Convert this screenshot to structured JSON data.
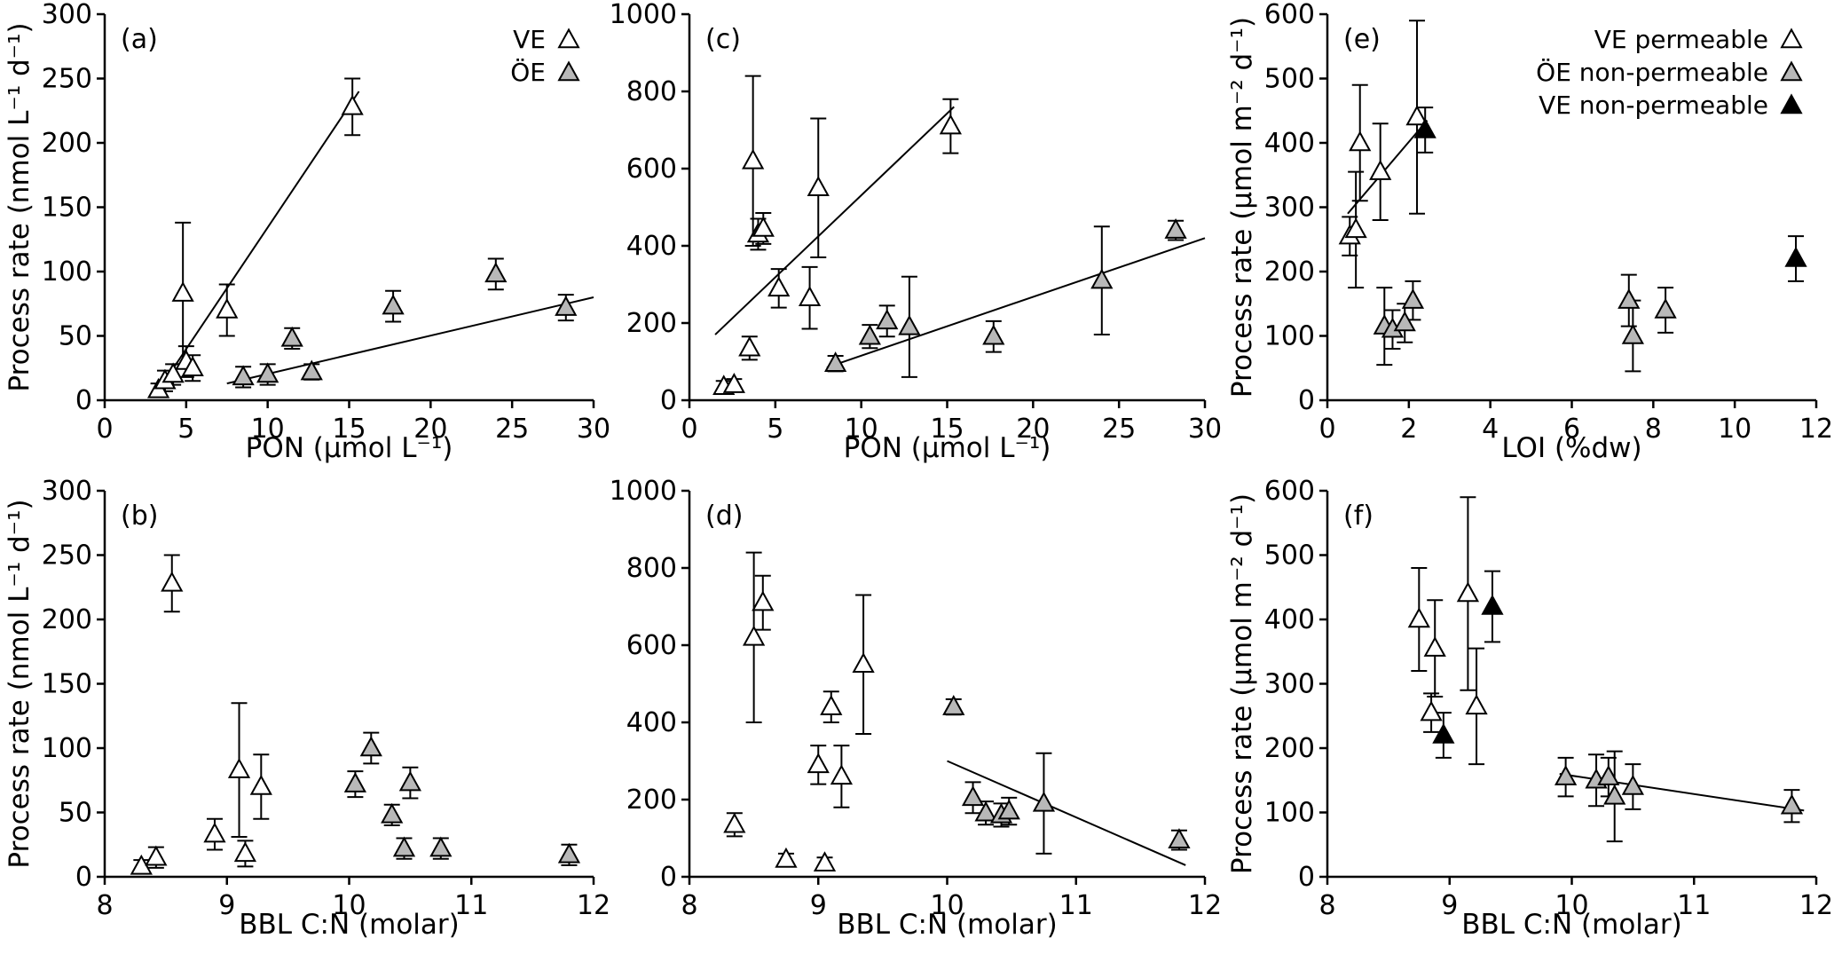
{
  "figure": {
    "background": "#ffffff",
    "axis_color": "#000000",
    "marker_styles": {
      "open": {
        "fill": "#ffffff",
        "stroke": "#000000"
      },
      "gray": {
        "fill": "#b8b8b8",
        "stroke": "#000000"
      },
      "black": {
        "fill": "#000000",
        "stroke": "#000000"
      }
    }
  },
  "chart_data": [
    {
      "id": "a",
      "type": "scatter",
      "panel_label": "(a)",
      "xlabel": "PON (µmol L⁻¹)",
      "ylabel": "Process rate (nmol L⁻¹ d⁻¹)",
      "xlim": [
        0,
        30
      ],
      "xticks": [
        0,
        5,
        10,
        15,
        20,
        25,
        30
      ],
      "ylim": [
        0,
        300
      ],
      "yticks": [
        0,
        50,
        100,
        150,
        200,
        250,
        300
      ],
      "legend": [
        {
          "label": "VE",
          "style": "open"
        },
        {
          "label": "ÖE",
          "style": "gray"
        }
      ],
      "series": [
        {
          "name": "VE",
          "style": "open",
          "points": [
            [
              3.3,
              8,
              5
            ],
            [
              3.7,
              15,
              8
            ],
            [
              4.2,
              20,
              8
            ],
            [
              4.8,
              83,
              55
            ],
            [
              5.0,
              30,
              12
            ],
            [
              5.4,
              25,
              10
            ],
            [
              7.5,
              70,
              20
            ],
            [
              15.2,
              228,
              22
            ]
          ]
        },
        {
          "name": "ÖE",
          "style": "gray",
          "points": [
            [
              8.5,
              18,
              8
            ],
            [
              10.0,
              20,
              8
            ],
            [
              11.5,
              48,
              8
            ],
            [
              12.7,
              22,
              6
            ],
            [
              17.7,
              73,
              12
            ],
            [
              24.0,
              98,
              12
            ],
            [
              28.3,
              72,
              10
            ]
          ]
        }
      ],
      "fit_lines": [
        [
          3.0,
          2,
          15.6,
          240
        ],
        [
          7.5,
          13,
          30,
          80
        ]
      ]
    },
    {
      "id": "c",
      "type": "scatter",
      "panel_label": "(c)",
      "xlabel": "PON (µmol L⁻¹)",
      "ylabel": "",
      "xlim": [
        0,
        30
      ],
      "xticks": [
        0,
        5,
        10,
        15,
        20,
        25,
        30
      ],
      "ylim": [
        0,
        1000
      ],
      "yticks": [
        0,
        200,
        400,
        600,
        800,
        1000
      ],
      "legend": [],
      "series": [
        {
          "name": "VE",
          "style": "open",
          "points": [
            [
              2.0,
              35,
              15
            ],
            [
              2.6,
              40,
              15
            ],
            [
              3.5,
              135,
              30
            ],
            [
              3.7,
              620,
              220
            ],
            [
              4.0,
              430,
              40
            ],
            [
              4.3,
              445,
              40
            ],
            [
              5.2,
              290,
              50
            ],
            [
              7.0,
              265,
              80
            ],
            [
              7.5,
              550,
              180
            ],
            [
              15.2,
              710,
              70
            ]
          ]
        },
        {
          "name": "ÖE",
          "style": "gray",
          "points": [
            [
              8.5,
              95,
              20
            ],
            [
              10.5,
              165,
              30
            ],
            [
              11.5,
              205,
              40
            ],
            [
              12.8,
              190,
              130
            ],
            [
              17.7,
              165,
              40
            ],
            [
              24.0,
              310,
              140
            ],
            [
              28.3,
              440,
              25
            ]
          ]
        }
      ],
      "fit_lines": [
        [
          1.5,
          170,
          15.4,
          760
        ],
        [
          8.0,
          85,
          30,
          420
        ]
      ]
    },
    {
      "id": "e",
      "type": "scatter",
      "panel_label": "(e)",
      "xlabel": "LOI (%dw)",
      "ylabel": "Process rate (µmol m⁻² d⁻¹)",
      "xlim": [
        0,
        12
      ],
      "xticks": [
        0,
        2,
        4,
        6,
        8,
        10,
        12
      ],
      "ylim": [
        0,
        600
      ],
      "yticks": [
        0,
        100,
        200,
        300,
        400,
        500,
        600
      ],
      "legend": [
        {
          "label": "VE permeable",
          "style": "open"
        },
        {
          "label": "ÖE non-permeable",
          "style": "gray"
        },
        {
          "label": "VE non-permeable",
          "style": "black"
        }
      ],
      "series": [
        {
          "name": "VE permeable",
          "style": "open",
          "points": [
            [
              0.55,
              255,
              30
            ],
            [
              0.7,
              265,
              90
            ],
            [
              0.8,
              400,
              90
            ],
            [
              1.3,
              355,
              75
            ],
            [
              2.2,
              440,
              150
            ]
          ]
        },
        {
          "name": "ÖE non-permeable",
          "style": "gray",
          "points": [
            [
              1.4,
              115,
              60
            ],
            [
              1.6,
              110,
              30
            ],
            [
              1.9,
              120,
              30
            ],
            [
              2.1,
              155,
              30
            ],
            [
              7.4,
              155,
              40
            ],
            [
              7.5,
              100,
              55
            ],
            [
              8.3,
              140,
              35
            ]
          ]
        },
        {
          "name": "VE non-permeable",
          "style": "black",
          "points": [
            [
              2.4,
              420,
              35
            ],
            [
              11.5,
              220,
              35
            ]
          ]
        }
      ],
      "fit_lines": [
        [
          0.5,
          290,
          2.45,
          435
        ]
      ]
    },
    {
      "id": "b",
      "type": "scatter",
      "panel_label": "(b)",
      "xlabel": "BBL C:N (molar)",
      "ylabel": "Process rate (nmol L⁻¹ d⁻¹)",
      "xlim": [
        8,
        12
      ],
      "xticks": [
        8,
        9,
        10,
        11,
        12
      ],
      "ylim": [
        0,
        300
      ],
      "yticks": [
        0,
        50,
        100,
        150,
        200,
        250,
        300
      ],
      "legend": [],
      "series": [
        {
          "name": "VE",
          "style": "open",
          "points": [
            [
              8.3,
              8,
              5
            ],
            [
              8.42,
              15,
              8
            ],
            [
              8.55,
              228,
              22
            ],
            [
              8.9,
              33,
              12
            ],
            [
              9.1,
              83,
              52
            ],
            [
              9.15,
              18,
              10
            ],
            [
              9.28,
              70,
              25
            ]
          ]
        },
        {
          "name": "ÖE",
          "style": "gray",
          "points": [
            [
              10.05,
              72,
              10
            ],
            [
              10.18,
              100,
              12
            ],
            [
              10.35,
              48,
              8
            ],
            [
              10.45,
              22,
              8
            ],
            [
              10.5,
              73,
              12
            ],
            [
              10.75,
              22,
              8
            ],
            [
              11.8,
              17,
              8
            ]
          ]
        }
      ],
      "fit_lines": []
    },
    {
      "id": "d",
      "type": "scatter",
      "panel_label": "(d)",
      "xlabel": "BBL C:N (molar)",
      "ylabel": "",
      "xlim": [
        8,
        12
      ],
      "xticks": [
        8,
        9,
        10,
        11,
        12
      ],
      "ylim": [
        0,
        1000
      ],
      "yticks": [
        0,
        200,
        400,
        600,
        800,
        1000
      ],
      "legend": [],
      "series": [
        {
          "name": "VE",
          "style": "open",
          "points": [
            [
              8.35,
              135,
              30
            ],
            [
              8.5,
              620,
              220
            ],
            [
              8.57,
              710,
              70
            ],
            [
              8.75,
              45,
              15
            ],
            [
              9.0,
              290,
              50
            ],
            [
              9.05,
              35,
              15
            ],
            [
              9.1,
              440,
              40
            ],
            [
              9.18,
              260,
              80
            ],
            [
              9.35,
              550,
              180
            ]
          ]
        },
        {
          "name": "ÖE",
          "style": "gray",
          "points": [
            [
              10.05,
              440,
              20
            ],
            [
              10.2,
              205,
              40
            ],
            [
              10.3,
              165,
              30
            ],
            [
              10.42,
              160,
              30
            ],
            [
              10.48,
              170,
              35
            ],
            [
              10.75,
              190,
              130
            ],
            [
              11.8,
              95,
              25
            ]
          ]
        }
      ],
      "fit_lines": [
        [
          10.0,
          300,
          11.85,
          30
        ]
      ]
    },
    {
      "id": "f",
      "type": "scatter",
      "panel_label": "(f)",
      "xlabel": "BBL C:N (molar)",
      "ylabel": "Process rate (µmol m⁻² d⁻¹)",
      "xlim": [
        8,
        12
      ],
      "xticks": [
        8,
        9,
        10,
        11,
        12
      ],
      "ylim": [
        0,
        600
      ],
      "yticks": [
        0,
        100,
        200,
        300,
        400,
        500,
        600
      ],
      "legend": [],
      "series": [
        {
          "name": "VE permeable",
          "style": "open",
          "points": [
            [
              8.75,
              400,
              80
            ],
            [
              8.85,
              255,
              30
            ],
            [
              8.88,
              355,
              75
            ],
            [
              9.15,
              440,
              150
            ],
            [
              9.22,
              265,
              90
            ]
          ]
        },
        {
          "name": "ÖE non-permeable",
          "style": "gray",
          "points": [
            [
              9.95,
              155,
              30
            ],
            [
              10.2,
              150,
              40
            ],
            [
              10.3,
              155,
              30
            ],
            [
              10.35,
              125,
              70
            ],
            [
              10.5,
              140,
              35
            ],
            [
              11.8,
              110,
              25
            ]
          ]
        },
        {
          "name": "VE non-permeable",
          "style": "black",
          "points": [
            [
              8.95,
              220,
              35
            ],
            [
              9.35,
              420,
              55
            ]
          ]
        }
      ],
      "fit_lines": [
        [
          9.9,
          160,
          11.9,
          103
        ]
      ]
    }
  ]
}
